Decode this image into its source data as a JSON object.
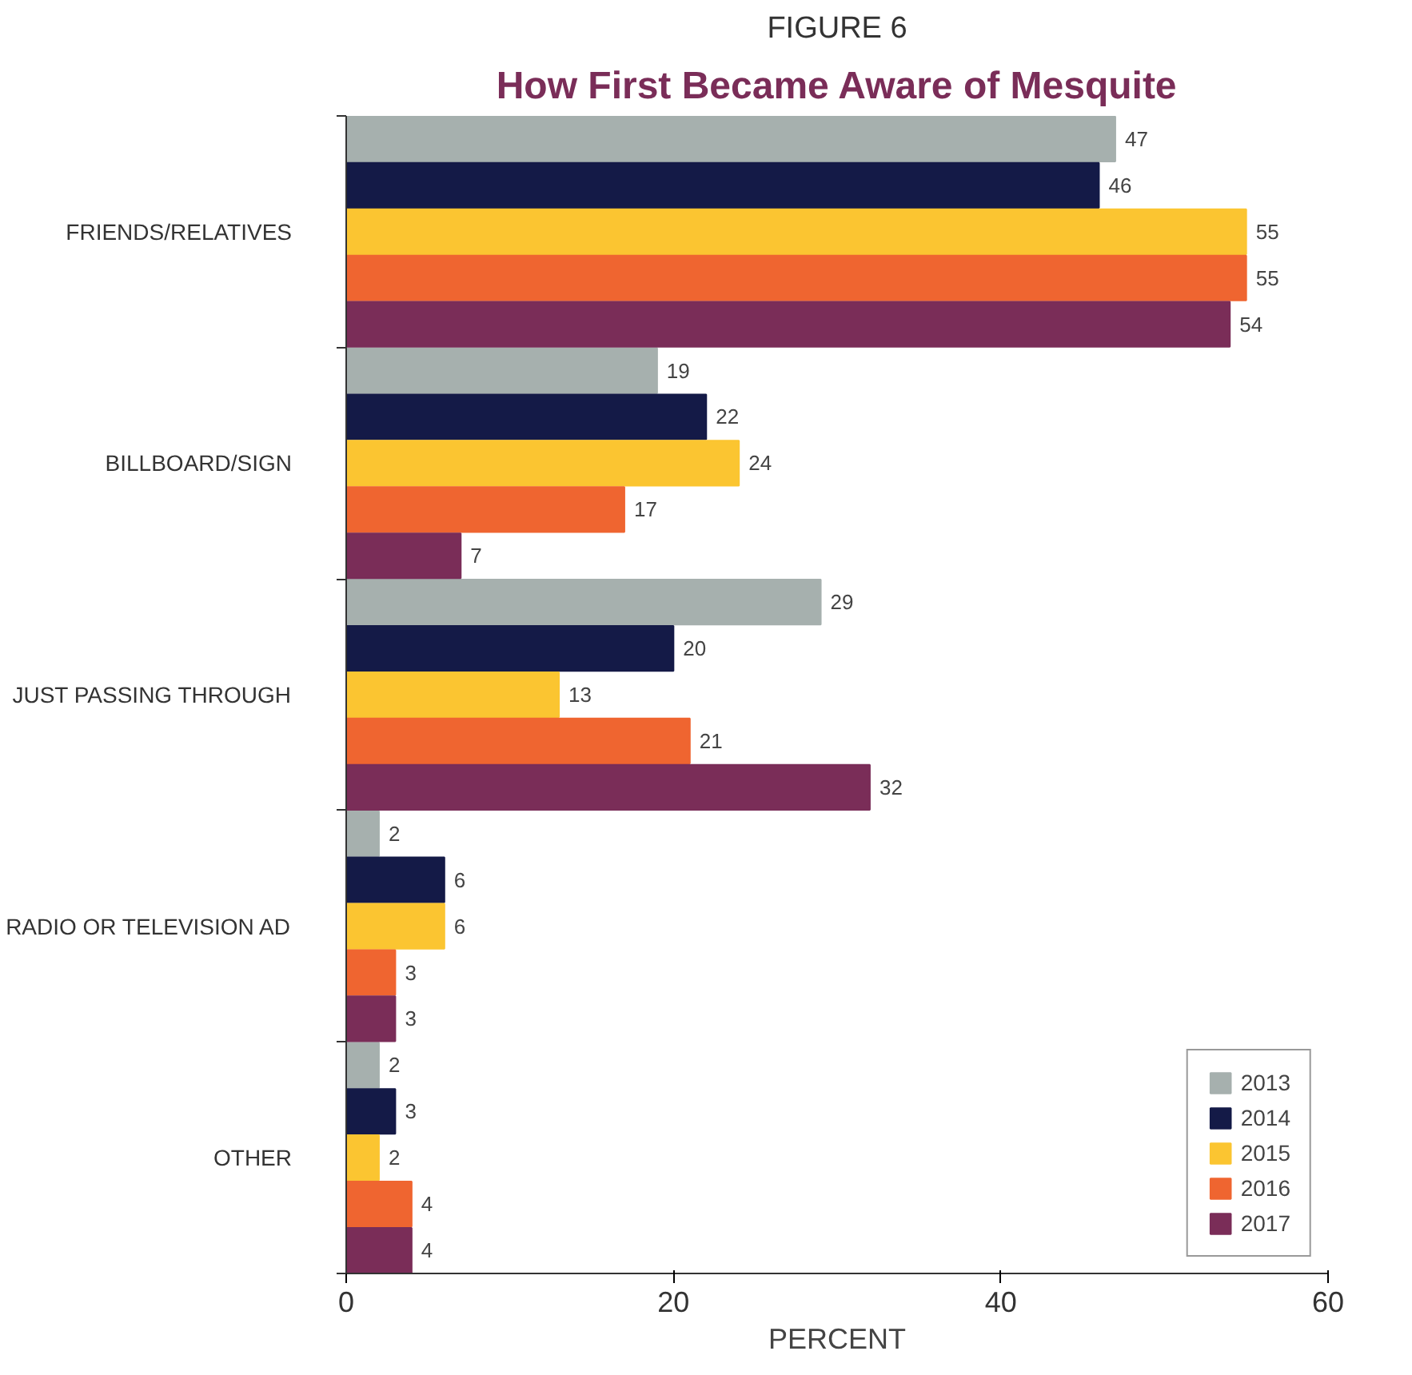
{
  "chart_data": {
    "type": "bar",
    "orientation": "horizontal",
    "title": "How First Became Aware of Mesquite",
    "annotations": [
      "FIGURE 6"
    ],
    "xlabel": "PERCENT",
    "categories": [
      "FRIENDS/RELATIVES",
      "BILLBOARD/SIGN",
      "JUST PASSING THROUGH",
      "RADIO OR TELEVISION AD",
      "OTHER"
    ],
    "series": [
      {
        "name": "2013",
        "color": "#a6b0ae",
        "values": [
          47,
          19,
          29,
          2,
          2
        ]
      },
      {
        "name": "2014",
        "color": "#141a47",
        "values": [
          46,
          22,
          20,
          6,
          3
        ]
      },
      {
        "name": "2015",
        "color": "#fbc531",
        "values": [
          55,
          24,
          13,
          6,
          2
        ]
      },
      {
        "name": "2016",
        "color": "#ef6530",
        "values": [
          55,
          17,
          21,
          3,
          4
        ]
      },
      {
        "name": "2017",
        "color": "#7a2d58",
        "values": [
          54,
          7,
          32,
          3,
          4
        ]
      }
    ],
    "xlim": [
      0,
      60
    ],
    "xticks": [
      0,
      20,
      40,
      60
    ],
    "data_labels": true,
    "grid": false,
    "legend": "bottom right"
  }
}
